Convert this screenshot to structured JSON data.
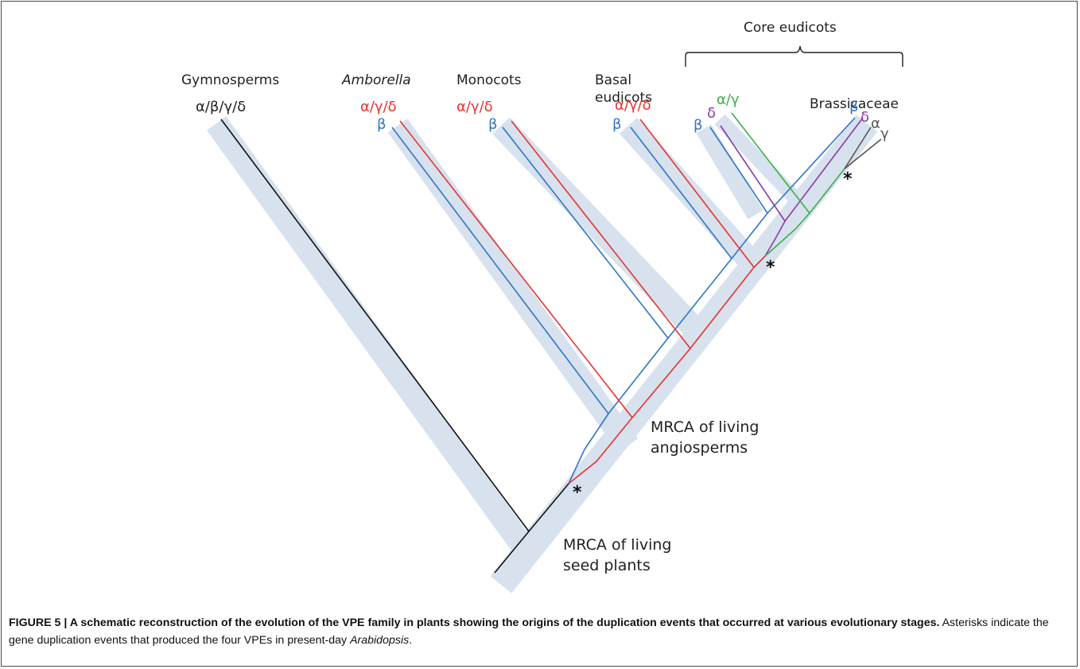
{
  "colors": {
    "branch_band": "#d7e2ee",
    "alpha_gamma_delta": "#e8312f",
    "beta": "#2f74c8",
    "delta": "#8b3aa6",
    "alpha_gamma": "#3cae48",
    "alpha": "#555555",
    "ancestral": "#111111"
  },
  "clades": {
    "gymnosperms": "Gymnosperms",
    "amborella": "Amborella",
    "monocots": "Monocots",
    "basal_eudicots_line1": "Basal",
    "basal_eudicots_line2": "eudicots",
    "core_eudicots": "Core eudicots",
    "brassicaceae": "Brassicaceae"
  },
  "labels": {
    "gymno_genes": "α/β/γ/δ",
    "agd": "α/γ/δ",
    "beta": "β",
    "delta": "δ",
    "alpha_gamma": "α/γ",
    "alpha": "α",
    "gamma": "γ",
    "star": "*"
  },
  "nodes": {
    "angio_line1": "MRCA of living",
    "angio_line2": "angiosperms",
    "seed_line1": "MRCA of living",
    "seed_line2": "seed plants"
  },
  "caption": {
    "bold": "FIGURE 5 | A schematic reconstruction of the evolution of the VPE family in plants showing the origins of the duplication events that occurred at various evolutionary stages.",
    "text_before": " Asterisks indicate the gene duplication events that produced the four VPEs in present-day ",
    "italic": "Arabidopsis",
    "text_after": "."
  }
}
